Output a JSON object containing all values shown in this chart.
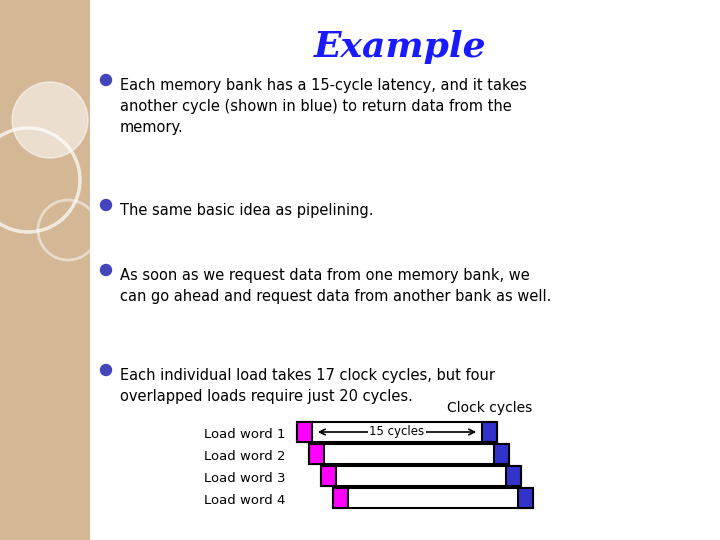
{
  "title": "Example",
  "title_color": "#1a1aff",
  "title_fontsize": 26,
  "bg_color": "#ffffff",
  "left_panel_color": "#d4b896",
  "bullet_color": "#4444bb",
  "text_fontsize": 10.5,
  "diagram_label": "Clock cycles",
  "load_labels": [
    "Load word 1",
    "Load word 2",
    "Load word 3",
    "Load word 4"
  ],
  "annotation": "15 cycles",
  "magenta_color": "#ff00ff",
  "blue_color": "#3333cc",
  "white_color": "#ffffff",
  "bar_border_color": "#000000"
}
